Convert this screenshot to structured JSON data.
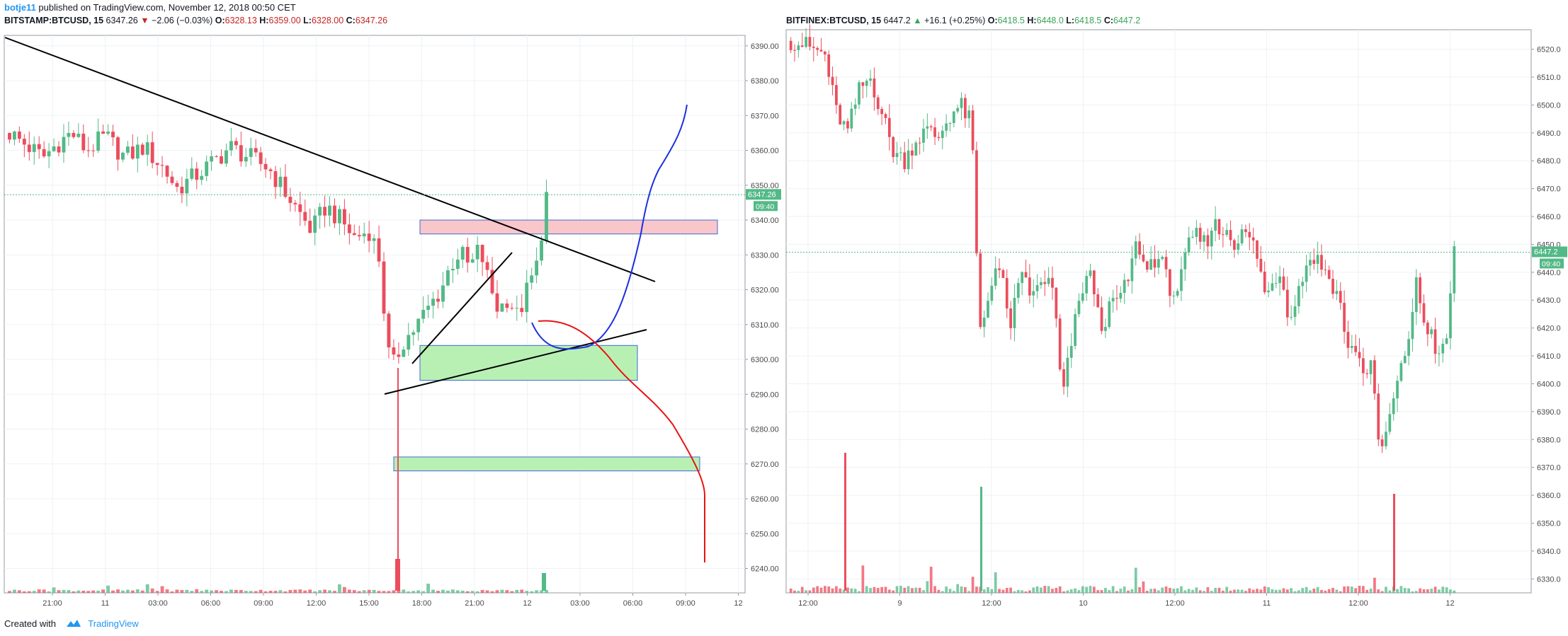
{
  "header": {
    "user": "botje11",
    "published": "published on TradingView.com, November 12, 2018 00:50 CET"
  },
  "left_legend": {
    "symbol": "BITSTAMP:BTCUSD, 15",
    "last": "6347.26",
    "change": "−2.06 (−0.03%)",
    "o_label": "O:",
    "o": "6328.13",
    "h_label": "H:",
    "h": "6359.00",
    "l_label": "L:",
    "l": "6328.00",
    "c_label": "C:",
    "c": "6347.26"
  },
  "right_legend": {
    "symbol": "BITFINEX:BTCUSD, 15",
    "last": "6447.2",
    "change": "+16.1 (+0.25%)",
    "o_label": "O:",
    "o": "6418.5",
    "h_label": "H:",
    "h": "6448.0",
    "l_label": "L:",
    "l": "6418.5",
    "c_label": "C:",
    "c": "6447.2"
  },
  "footer": {
    "created": "Created with",
    "brand": "TradingView"
  },
  "chart_data": [
    {
      "type": "candlestick",
      "symbol": "BITSTAMP:BTCUSD",
      "interval": "15",
      "colors": {
        "up": "#53b987",
        "down": "#eb4d5c",
        "box_red": "#f9c6c9",
        "box_green": "#b8f0b4",
        "last_price": "#53b987"
      },
      "x_ticks": [
        "21:00",
        "11",
        "03:00",
        "06:00",
        "09:00",
        "12:00",
        "15:00",
        "18:00",
        "21:00",
        "12",
        "03:00",
        "06:00",
        "09:00",
        "12"
      ],
      "y_ticks": [
        "6390.00",
        "6380.00",
        "6370.00",
        "6360.00",
        "6350.00",
        "6340.00",
        "6330.00",
        "6320.00",
        "6310.00",
        "6300.00",
        "6290.00",
        "6280.00",
        "6270.00",
        "6260.00",
        "6250.00",
        "6240.00"
      ],
      "ylim": [
        6233,
        6393
      ],
      "last_price": 6347.26,
      "last_price_label": "6347.26",
      "countdown": "09:40",
      "price_path": [
        [
          0,
          6365
        ],
        [
          4,
          6361
        ],
        [
          7,
          6358
        ],
        [
          10,
          6362
        ],
        [
          13,
          6365
        ],
        [
          16,
          6360
        ],
        [
          20,
          6364
        ],
        [
          24,
          6358
        ],
        [
          28,
          6361
        ],
        [
          32,
          6355
        ],
        [
          35,
          6349
        ],
        [
          38,
          6352
        ],
        [
          42,
          6356
        ],
        [
          46,
          6361
        ],
        [
          50,
          6358
        ],
        [
          54,
          6355
        ],
        [
          57,
          6349
        ],
        [
          60,
          6343
        ],
        [
          63,
          6337
        ],
        [
          66,
          6344
        ],
        [
          69,
          6340
        ],
        [
          72,
          6335
        ],
        [
          75,
          6337
        ],
        [
          77,
          6330
        ],
        [
          79,
          6302
        ],
        [
          80,
          6298
        ],
        [
          82,
          6305
        ],
        [
          84,
          6308
        ],
        [
          86,
          6312
        ],
        [
          88,
          6316
        ],
        [
          90,
          6320
        ],
        [
          92,
          6327
        ],
        [
          94,
          6331
        ],
        [
          96,
          6326
        ],
        [
          98,
          6332
        ],
        [
          100,
          6322
        ],
        [
          102,
          6314
        ],
        [
          104,
          6318
        ],
        [
          106,
          6312
        ],
        [
          108,
          6320
        ],
        [
          110,
          6327
        ],
        [
          112,
          6347
        ]
      ],
      "annotations": {
        "resistance_zone": [
          6336,
          6340
        ],
        "support_zone_1": [
          6294,
          6304
        ],
        "support_zone_2": [
          6268,
          6272
        ]
      }
    },
    {
      "type": "candlestick",
      "symbol": "BITFINEX:BTCUSD",
      "interval": "15",
      "colors": {
        "up": "#53b987",
        "down": "#eb4d5c",
        "last_price": "#53b987"
      },
      "x_ticks": [
        "12:00",
        "9",
        "12:00",
        "10",
        "12:00",
        "11",
        "12:00",
        "12"
      ],
      "y_ticks": [
        "6520.0",
        "6510.0",
        "6500.0",
        "6490.0",
        "6480.0",
        "6470.0",
        "6460.0",
        "6450.0",
        "6440.0",
        "6430.0",
        "6420.0",
        "6410.0",
        "6400.0",
        "6390.0",
        "6380.0",
        "6370.0",
        "6360.0",
        "6350.0",
        "6340.0",
        "6330.0"
      ],
      "ylim": [
        6325,
        6527
      ],
      "last_price": 6447.2,
      "last_price_label": "6447.2",
      "countdown": "09:40",
      "price_path": [
        [
          0,
          6523
        ],
        [
          3,
          6522
        ],
        [
          6,
          6520
        ],
        [
          9,
          6518
        ],
        [
          12,
          6498
        ],
        [
          15,
          6490
        ],
        [
          18,
          6505
        ],
        [
          21,
          6510
        ],
        [
          24,
          6498
        ],
        [
          27,
          6484
        ],
        [
          30,
          6480
        ],
        [
          33,
          6487
        ],
        [
          36,
          6491
        ],
        [
          39,
          6488
        ],
        [
          42,
          6496
        ],
        [
          45,
          6500
        ],
        [
          48,
          6493
        ],
        [
          50,
          6418
        ],
        [
          52,
          6428
        ],
        [
          54,
          6443
        ],
        [
          56,
          6438
        ],
        [
          58,
          6420
        ],
        [
          60,
          6432
        ],
        [
          62,
          6440
        ],
        [
          64,
          6430
        ],
        [
          66,
          6436
        ],
        [
          68,
          6438
        ],
        [
          70,
          6430
        ],
        [
          72,
          6393
        ],
        [
          74,
          6412
        ],
        [
          76,
          6426
        ],
        [
          78,
          6438
        ],
        [
          80,
          6438
        ],
        [
          82,
          6420
        ],
        [
          84,
          6425
        ],
        [
          86,
          6430
        ],
        [
          88,
          6432
        ],
        [
          90,
          6440
        ],
        [
          92,
          6452
        ],
        [
          94,
          6440
        ],
        [
          96,
          6445
        ],
        [
          98,
          6445
        ],
        [
          100,
          6436
        ],
        [
          102,
          6432
        ],
        [
          104,
          6440
        ],
        [
          106,
          6452
        ],
        [
          108,
          6453
        ],
        [
          110,
          6450
        ],
        [
          112,
          6458
        ],
        [
          114,
          6454
        ],
        [
          116,
          6456
        ],
        [
          118,
          6450
        ],
        [
          120,
          6454
        ],
        [
          122,
          6452
        ],
        [
          124,
          6445
        ],
        [
          126,
          6430
        ],
        [
          128,
          6438
        ],
        [
          130,
          6440
        ],
        [
          132,
          6425
        ],
        [
          134,
          6430
        ],
        [
          136,
          6440
        ],
        [
          138,
          6446
        ],
        [
          140,
          6444
        ],
        [
          142,
          6440
        ],
        [
          144,
          6435
        ],
        [
          146,
          6428
        ],
        [
          148,
          6410
        ],
        [
          150,
          6414
        ],
        [
          152,
          6402
        ],
        [
          154,
          6410
        ],
        [
          156,
          6375
        ],
        [
          158,
          6382
        ],
        [
          160,
          6395
        ],
        [
          162,
          6405
        ],
        [
          164,
          6418
        ],
        [
          166,
          6436
        ],
        [
          168,
          6422
        ],
        [
          170,
          6418
        ],
        [
          172,
          6408
        ],
        [
          174,
          6417
        ],
        [
          176,
          6447
        ]
      ]
    }
  ]
}
